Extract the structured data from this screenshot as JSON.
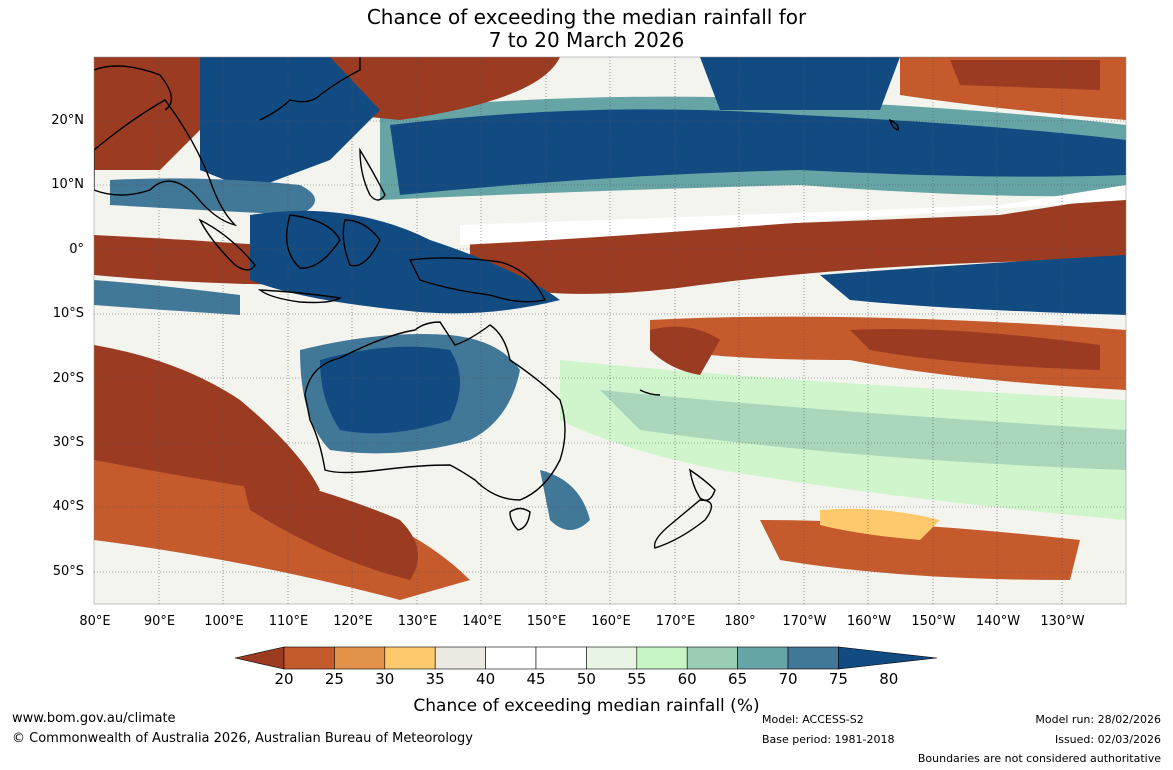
{
  "title": {
    "line1": "Chance of exceeding the median rainfall for",
    "line2": "7 to 20 March 2026"
  },
  "map": {
    "lat_labels": [
      "20°N",
      "10°N",
      "0°",
      "10°S",
      "20°S",
      "30°S",
      "40°S",
      "50°S"
    ],
    "lon_labels": [
      "80°E",
      "90°E",
      "100°E",
      "110°E",
      "120°E",
      "130°E",
      "140°E",
      "150°E",
      "160°E",
      "170°E",
      "180°",
      "170°W",
      "160°W",
      "150°W",
      "140°W",
      "130°W"
    ],
    "lat_range": [
      -55,
      30
    ],
    "lon_range": [
      80,
      240
    ]
  },
  "colorbar": {
    "ticks": [
      "20",
      "25",
      "30",
      "35",
      "40",
      "45",
      "50",
      "55",
      "60",
      "65",
      "70",
      "75",
      "80"
    ],
    "colors": [
      "#9a3b22",
      "#c55a2d",
      "#e3934a",
      "#fdc96c",
      "#ebe9e2",
      "#ffffff",
      "#ffffff",
      "#e8f5e4",
      "#c7f5c4",
      "#9acbb3",
      "#67a4a6",
      "#417797",
      "#124b82"
    ],
    "label": "Chance of exceeding median rainfall (%)"
  },
  "footer": {
    "website": "www.bom.gov.au/climate",
    "copyright": "© Commonwealth of Australia 2026, Australian Bureau of Meteorology",
    "model": "Model: ACCESS-S2",
    "base_period": "Base period: 1981-2018",
    "model_run": "Model run: 28/02/2026",
    "issued": "Issued: 02/03/2026",
    "disclaimer": "Boundaries are not considered authoritative"
  }
}
